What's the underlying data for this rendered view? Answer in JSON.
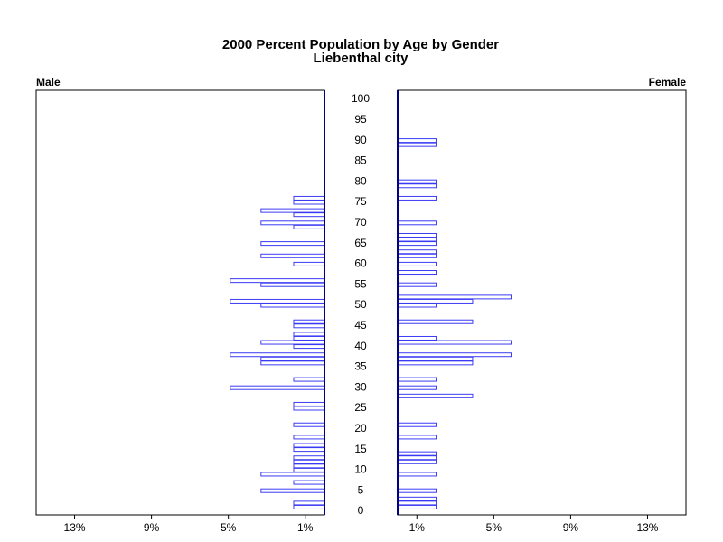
{
  "chart_data": {
    "type": "pyramid",
    "title": "2000 Percent Population by Age by Gender",
    "subtitle": "Liebenthal city",
    "ages": [
      0,
      1,
      2,
      3,
      4,
      5,
      6,
      7,
      8,
      9,
      10,
      11,
      12,
      13,
      14,
      15,
      16,
      17,
      18,
      19,
      20,
      21,
      22,
      23,
      24,
      25,
      26,
      27,
      28,
      29,
      30,
      31,
      32,
      33,
      34,
      35,
      36,
      37,
      38,
      39,
      40,
      41,
      42,
      43,
      44,
      45,
      46,
      47,
      48,
      49,
      50,
      51,
      52,
      53,
      54,
      55,
      56,
      57,
      58,
      59,
      60,
      61,
      62,
      63,
      64,
      65,
      66,
      67,
      68,
      69,
      70,
      71,
      72,
      73,
      74,
      75,
      76,
      77,
      78,
      79,
      80,
      81,
      82,
      83,
      84,
      85,
      86,
      87,
      88,
      89,
      90,
      91,
      92,
      93,
      94,
      95,
      96,
      97,
      98,
      99,
      100
    ],
    "ylim": [
      0,
      100
    ],
    "yticks": [
      0,
      5,
      10,
      15,
      20,
      25,
      30,
      35,
      40,
      45,
      50,
      55,
      60,
      65,
      70,
      75,
      80,
      85,
      90,
      95,
      100
    ],
    "xlim": [
      0,
      15
    ],
    "xticks": [
      {
        "value": 1,
        "label": "1%"
      },
      {
        "value": 5,
        "label": "5%"
      },
      {
        "value": 9,
        "label": "9%"
      },
      {
        "value": 13,
        "label": "13%"
      }
    ],
    "series": [
      {
        "name": "Male",
        "color": "#3b3bf5",
        "values": [
          0,
          1.6,
          1.6,
          0,
          0,
          3.3,
          0,
          1.6,
          0,
          3.3,
          1.6,
          1.6,
          1.6,
          1.6,
          0,
          1.6,
          1.6,
          0,
          1.6,
          0,
          0,
          1.6,
          0,
          0,
          0,
          1.6,
          1.6,
          0,
          0,
          0,
          4.9,
          0,
          1.6,
          0,
          0,
          0,
          3.3,
          3.3,
          4.9,
          0,
          1.6,
          3.3,
          1.6,
          1.6,
          0,
          1.6,
          1.6,
          0,
          0,
          0,
          3.3,
          4.9,
          0,
          0,
          0,
          3.3,
          4.9,
          0,
          0,
          0,
          1.6,
          0,
          3.3,
          0,
          0,
          3.3,
          0,
          0,
          0,
          1.6,
          3.3,
          0,
          1.6,
          3.3,
          0,
          1.6,
          1.6,
          0,
          0,
          0,
          0,
          0,
          0,
          0,
          0,
          0,
          0,
          0,
          0,
          0,
          0,
          0,
          0,
          0,
          0,
          0,
          0,
          0,
          0,
          0,
          0
        ]
      },
      {
        "name": "Female",
        "color": "#3b3bf5",
        "values": [
          0,
          2.0,
          2.0,
          2.0,
          0,
          2.0,
          0,
          0,
          0,
          2.0,
          0,
          0,
          2.0,
          2.0,
          2.0,
          0,
          0,
          0,
          2.0,
          0,
          0,
          2.0,
          0,
          0,
          0,
          0,
          0,
          0,
          3.9,
          0,
          2.0,
          0,
          2.0,
          0,
          0,
          0,
          3.9,
          3.9,
          5.9,
          0,
          0,
          5.9,
          2.0,
          0,
          0,
          0,
          3.9,
          0,
          0,
          0,
          2.0,
          3.9,
          5.9,
          0,
          0,
          2.0,
          0,
          0,
          2.0,
          0,
          2.0,
          0,
          2.0,
          2.0,
          0,
          2.0,
          2.0,
          2.0,
          0,
          0,
          2.0,
          0,
          0,
          0,
          0,
          0,
          2.0,
          0,
          0,
          2.0,
          2.0,
          0,
          0,
          0,
          0,
          0,
          0,
          0,
          0,
          2.0,
          2.0,
          0,
          0,
          0,
          0,
          0,
          0,
          0,
          0,
          0,
          0
        ]
      }
    ]
  }
}
